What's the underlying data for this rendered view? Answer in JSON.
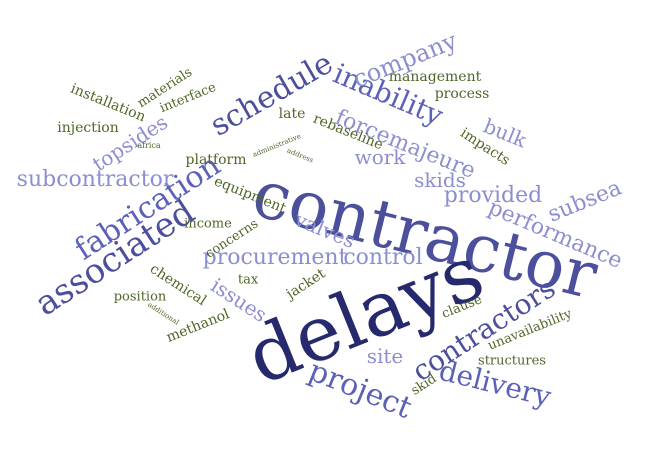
{
  "palette": {
    "dark_navy": "#262a6d",
    "indigo": "#4b4f9c",
    "blue_violet": "#5c61b8",
    "periwinkle": "#8b8fd0",
    "olive": "#4f6627"
  },
  "words": [
    {
      "text": "contractor"
    },
    {
      "text": "delays"
    },
    {
      "text": "associated"
    },
    {
      "text": "fabrication"
    },
    {
      "text": "schedule"
    },
    {
      "text": "inability"
    },
    {
      "text": "project"
    },
    {
      "text": "contractors"
    },
    {
      "text": "delivery"
    },
    {
      "text": "company"
    },
    {
      "text": "forcemajeure"
    },
    {
      "text": "subcontractor"
    },
    {
      "text": "procurement"
    },
    {
      "text": "performance"
    },
    {
      "text": "provided"
    },
    {
      "text": "subsea"
    },
    {
      "text": "valves"
    },
    {
      "text": "control"
    },
    {
      "text": "work"
    },
    {
      "text": "skids"
    },
    {
      "text": "bulk"
    },
    {
      "text": "topsides"
    },
    {
      "text": "issues"
    },
    {
      "text": "site"
    },
    {
      "text": "management"
    },
    {
      "text": "process"
    },
    {
      "text": "impacts"
    },
    {
      "text": "rebaseline"
    },
    {
      "text": "late"
    },
    {
      "text": "materials"
    },
    {
      "text": "interface"
    },
    {
      "text": "installation"
    },
    {
      "text": "injection"
    },
    {
      "text": "platform"
    },
    {
      "text": "equipment"
    },
    {
      "text": "income"
    },
    {
      "text": "concerns"
    },
    {
      "text": "tax"
    },
    {
      "text": "jacket"
    },
    {
      "text": "chemical"
    },
    {
      "text": "position"
    },
    {
      "text": "methanol"
    },
    {
      "text": "clause"
    },
    {
      "text": "unavailability"
    },
    {
      "text": "structures"
    },
    {
      "text": "skid"
    },
    {
      "text": "africa"
    },
    {
      "text": "administrative"
    },
    {
      "text": "address"
    },
    {
      "text": "additional"
    }
  ]
}
